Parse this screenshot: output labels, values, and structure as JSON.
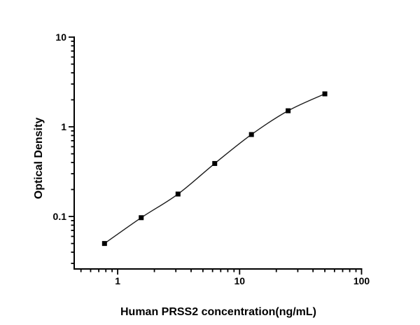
{
  "figure": {
    "colors": {
      "background": "#ffffff",
      "axis": "#000000",
      "curve": "#1a1a1a",
      "marker": "#000000",
      "text": "#000000"
    }
  },
  "chart_data": {
    "type": "scatter",
    "title": "",
    "xlabel": "Human PRSS2 concentration(ng/mL)",
    "ylabel": "Optical Density",
    "x_scale": "log",
    "y_scale": "log",
    "xlim": [
      0.44,
      100
    ],
    "ylim": [
      0.026,
      10
    ],
    "x_major_ticks": [
      1,
      10,
      100
    ],
    "x_tick_labels": [
      "1",
      "10",
      "100"
    ],
    "y_major_ticks": [
      0.1,
      1,
      10
    ],
    "y_tick_labels": [
      "0.1",
      "1",
      "10"
    ],
    "grid": false,
    "legend": false,
    "marker": "square",
    "line": "smooth",
    "series": [
      {
        "name": "standard-curve",
        "x": [
          0.78,
          1.56,
          3.125,
          6.25,
          12.5,
          25,
          50
        ],
        "y": [
          0.05,
          0.097,
          0.178,
          0.39,
          0.82,
          1.51,
          2.33
        ]
      }
    ]
  }
}
